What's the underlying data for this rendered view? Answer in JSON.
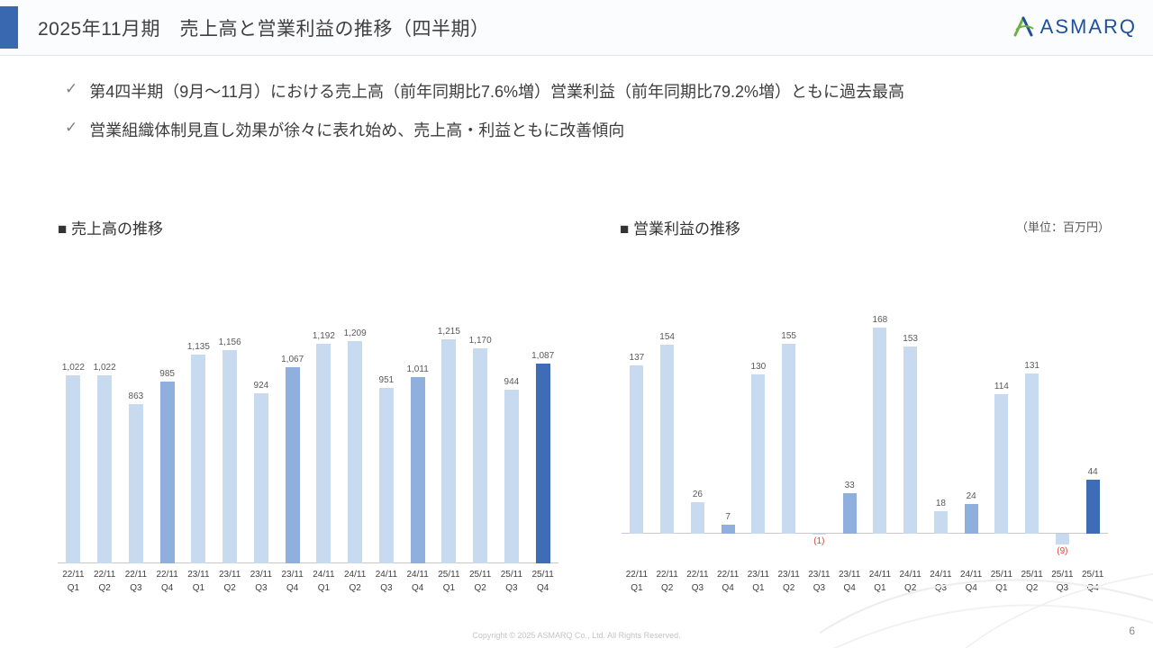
{
  "header": {
    "title": "2025年11月期　売上高と営業利益の推移（四半期）",
    "logo_text": "ASMARQ"
  },
  "bullets": [
    "第4四半期（9月～11月）における売上高（前年同期比7.6%増）営業利益（前年同期比79.2%増）ともに過去最高",
    "営業組織体制見直し効果が徐々に表れ始め、売上高・利益ともに改善傾向"
  ],
  "unit_label": "（単位：百万円）",
  "footer": {
    "copyright": "Copyright © 2025 ASMARQ Co., Ltd. All Rights Reserved.",
    "page_number": "6"
  },
  "colors": {
    "light": "#c7daf0",
    "mid": "#8fafdc",
    "dark": "#3f6cb6",
    "accent": "#3a68b0",
    "negative": "#e2453c",
    "logo_blue": "#1f509e",
    "logo_green": "#6fb043"
  },
  "chart_data": [
    {
      "type": "bar",
      "id": "revenue",
      "title": "■ 売上高の推移",
      "categories": [
        [
          "22/11",
          "Q1"
        ],
        [
          "22/11",
          "Q2"
        ],
        [
          "22/11",
          "Q3"
        ],
        [
          "22/11",
          "Q4"
        ],
        [
          "23/11",
          "Q1"
        ],
        [
          "23/11",
          "Q2"
        ],
        [
          "23/11",
          "Q3"
        ],
        [
          "23/11",
          "Q4"
        ],
        [
          "24/11",
          "Q1"
        ],
        [
          "24/11",
          "Q2"
        ],
        [
          "24/11",
          "Q3"
        ],
        [
          "24/11",
          "Q4"
        ],
        [
          "25/11",
          "Q1"
        ],
        [
          "25/11",
          "Q2"
        ],
        [
          "25/11",
          "Q3"
        ],
        [
          "25/11",
          "Q4"
        ]
      ],
      "values": [
        1022,
        1022,
        863,
        985,
        1135,
        1156,
        924,
        1067,
        1192,
        1209,
        951,
        1011,
        1215,
        1170,
        944,
        1087
      ],
      "labels": [
        "1,022",
        "1,022",
        "863",
        "985",
        "1,135",
        "1,156",
        "924",
        "1,067",
        "1,192",
        "1,209",
        "951",
        "1,011",
        "1,215",
        "1,170",
        "944",
        "1,087"
      ],
      "ylim": [
        0,
        1300
      ],
      "unit": "百万円",
      "grid": false,
      "color_roles": [
        "light",
        "light",
        "light",
        "mid",
        "light",
        "light",
        "light",
        "mid",
        "light",
        "light",
        "light",
        "mid",
        "light",
        "light",
        "light",
        "dark"
      ]
    },
    {
      "type": "bar",
      "id": "profit",
      "title": "■ 営業利益の推移",
      "categories": [
        [
          "22/11",
          "Q1"
        ],
        [
          "22/11",
          "Q2"
        ],
        [
          "22/11",
          "Q3"
        ],
        [
          "22/11",
          "Q4"
        ],
        [
          "23/11",
          "Q1"
        ],
        [
          "23/11",
          "Q2"
        ],
        [
          "23/11",
          "Q3"
        ],
        [
          "23/11",
          "Q4"
        ],
        [
          "24/11",
          "Q1"
        ],
        [
          "24/11",
          "Q2"
        ],
        [
          "24/11",
          "Q3"
        ],
        [
          "24/11",
          "Q4"
        ],
        [
          "25/11",
          "Q1"
        ],
        [
          "25/11",
          "Q2"
        ],
        [
          "25/11",
          "Q3"
        ],
        [
          "25/11",
          "Q4"
        ]
      ],
      "values": [
        137,
        154,
        26,
        7,
        130,
        155,
        -1,
        33,
        168,
        153,
        18,
        24,
        114,
        131,
        -9,
        44
      ],
      "labels": [
        "137",
        "154",
        "26",
        "7",
        "130",
        "155",
        "(1)",
        "33",
        "168",
        "153",
        "18",
        "24",
        "114",
        "131",
        "(9)",
        "44"
      ],
      "ylim": [
        -25,
        185
      ],
      "unit": "百万円",
      "grid": false,
      "color_roles": [
        "light",
        "light",
        "light",
        "mid",
        "light",
        "light",
        "light",
        "mid",
        "light",
        "light",
        "light",
        "mid",
        "light",
        "light",
        "light",
        "dark"
      ]
    }
  ]
}
